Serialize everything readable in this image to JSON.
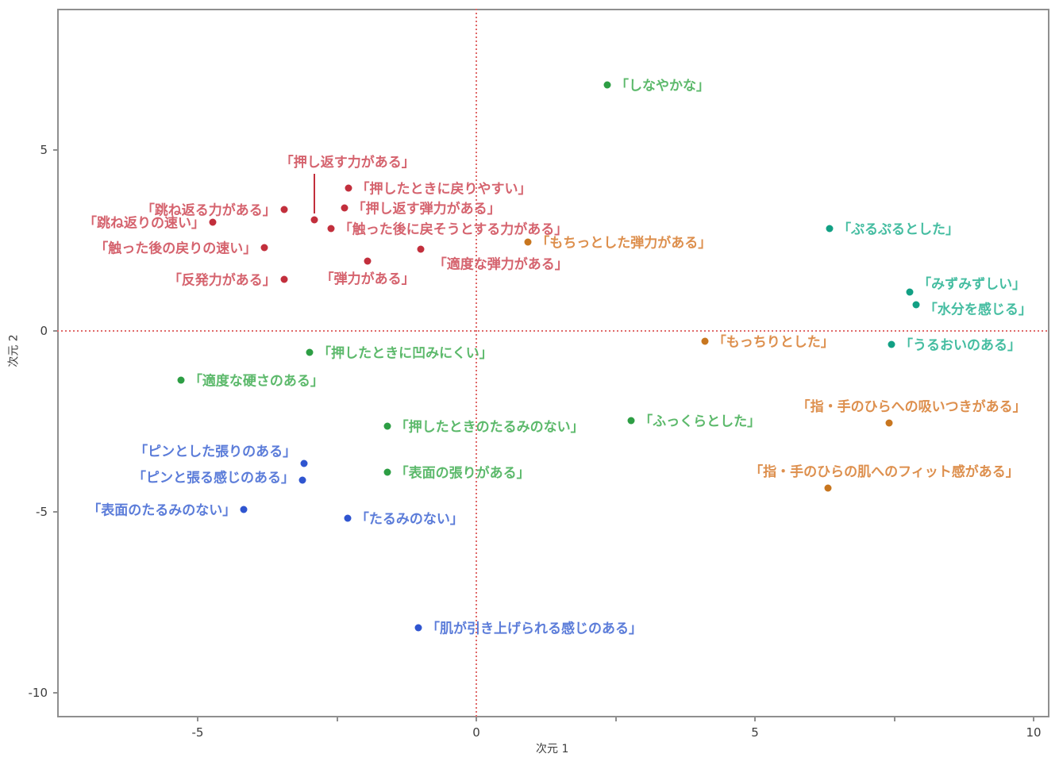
{
  "chart_data": {
    "type": "scatter",
    "title": "",
    "xlabel": "次元 1",
    "ylabel": "次元 2",
    "xlim": [
      -7.5,
      10.3
    ],
    "ylim": [
      -10.7,
      8.9
    ],
    "x_ticks": [
      -5,
      0,
      5,
      10
    ],
    "x_minor_ticks": [
      -5,
      -2.5,
      0,
      2.5,
      5,
      7.5,
      10
    ],
    "y_ticks": [
      5,
      0,
      -5,
      -10
    ],
    "grid": false,
    "legend": "none",
    "reference_lines": {
      "x": 0,
      "y": 0,
      "style": "dotted",
      "color": "#e06a6a"
    },
    "series": [
      {
        "name": "red-resilience",
        "dot_color": "#c22f3c",
        "label_color": "#d5636e",
        "points": [
          {
            "label": "「押したときに戻りやすい」",
            "x": -2.3,
            "y": 3.95,
            "anchor": "right"
          },
          {
            "label": "「押し返す弾力がある」",
            "x": -2.37,
            "y": 3.4,
            "anchor": "right"
          },
          {
            "label": "「跳ね返る力がある」",
            "x": -3.45,
            "y": 3.36,
            "anchor": "left"
          },
          {
            "label": "「押し返す力がある」",
            "x": -2.91,
            "y": 3.07,
            "anchor": "above",
            "dx": 42,
            "leader": true
          },
          {
            "label": "「跳ね返りの速い」",
            "x": -4.73,
            "y": 3.0,
            "anchor": "left"
          },
          {
            "label": "「触った後に戻そうとする力がある」",
            "x": -2.61,
            "y": 2.83,
            "anchor": "right"
          },
          {
            "label": "「触った後の戻りの速い」",
            "x": -3.8,
            "y": 2.3,
            "anchor": "left"
          },
          {
            "label": "「適度な弾力がある」",
            "x": -1.0,
            "y": 2.26,
            "anchor": "right",
            "dx": 6,
            "dy": 18
          },
          {
            "label": "「弾力がある」",
            "x": -1.95,
            "y": 1.93,
            "anchor": "below"
          },
          {
            "label": "「反発力がある」",
            "x": -3.45,
            "y": 1.43,
            "anchor": "left"
          }
        ]
      },
      {
        "name": "orange-fit",
        "dot_color": "#c8761f",
        "label_color": "#dd8f4d",
        "points": [
          {
            "label": "「もちっとした弾力がある」",
            "x": 0.93,
            "y": 2.46,
            "anchor": "right"
          },
          {
            "label": "「もっちりとした」",
            "x": 4.1,
            "y": -0.29,
            "anchor": "right"
          },
          {
            "label": "「指・手のひらへの吸いつきがある」",
            "x": 7.41,
            "y": -2.54,
            "anchor": "above",
            "dx": 28
          },
          {
            "label": "「指・手のひらの肌へのフィット感がある」",
            "x": 6.31,
            "y": -4.34,
            "anchor": "above",
            "dx": 71
          }
        ]
      },
      {
        "name": "green-firmness",
        "dot_color": "#2d9e44",
        "label_color": "#5cb96b",
        "points": [
          {
            "label": "「しなやかな」",
            "x": 2.35,
            "y": 6.8,
            "anchor": "right"
          },
          {
            "label": "「押したときに凹みにくい」",
            "x": -2.99,
            "y": -0.59,
            "anchor": "right"
          },
          {
            "label": "「適度な硬さのある」",
            "x": -5.3,
            "y": -1.36,
            "anchor": "right"
          },
          {
            "label": "「押したときのたるみのない」",
            "x": -1.6,
            "y": -2.63,
            "anchor": "right"
          },
          {
            "label": "「ふっくらとした」",
            "x": 2.78,
            "y": -2.48,
            "anchor": "right"
          },
          {
            "label": "「表面の張りがある」",
            "x": -1.6,
            "y": -3.9,
            "anchor": "right"
          }
        ]
      },
      {
        "name": "teal-moisture",
        "dot_color": "#12a084",
        "label_color": "#45bda1",
        "points": [
          {
            "label": "「ぷるぷるとした」",
            "x": 6.34,
            "y": 2.83,
            "anchor": "right"
          },
          {
            "label": "「みずみずしい」",
            "x": 7.78,
            "y": 1.07,
            "anchor": "right",
            "dy": -11
          },
          {
            "label": "「水分を感じる」",
            "x": 7.89,
            "y": 0.72,
            "anchor": "right",
            "dy": 5
          },
          {
            "label": "「うるおいのある」",
            "x": 7.45,
            "y": -0.37,
            "anchor": "right"
          }
        ]
      },
      {
        "name": "blue-tautness",
        "dot_color": "#2f55d0",
        "label_color": "#5b7cd9",
        "points": [
          {
            "label": "「ピンとした張りのある」",
            "x": -3.09,
            "y": -3.66,
            "anchor": "left",
            "dy": -16
          },
          {
            "label": "「ピンと張る感じのある」",
            "x": -3.12,
            "y": -4.12,
            "anchor": "left",
            "dy": -4
          },
          {
            "label": "「表面のたるみのない」",
            "x": -4.17,
            "y": -4.93,
            "anchor": "left"
          },
          {
            "label": "「たるみのない」",
            "x": -2.31,
            "y": -5.18,
            "anchor": "right"
          },
          {
            "label": "「肌が引き上げられる感じのある」",
            "x": -1.04,
            "y": -8.2,
            "anchor": "right"
          }
        ]
      }
    ]
  },
  "axes": {
    "x_tick_labels": [
      "-5",
      "0",
      "5",
      "10"
    ],
    "y_tick_labels": [
      "5",
      "0",
      "-5",
      "-10"
    ]
  }
}
